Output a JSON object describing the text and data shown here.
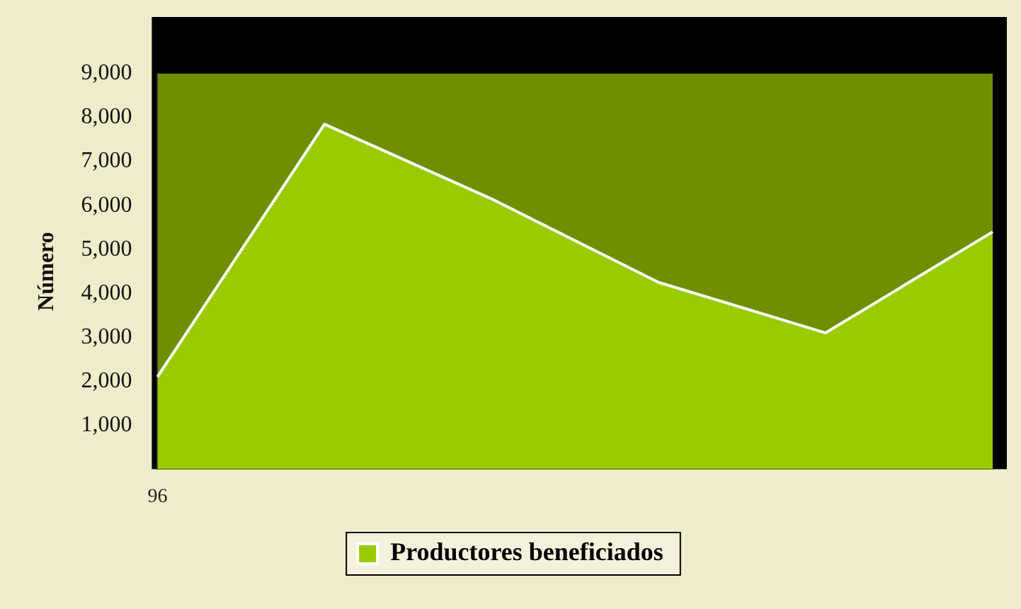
{
  "chart_data": {
    "type": "area",
    "ylabel": "Número",
    "categories": [
      "96",
      null,
      null,
      null,
      null,
      null
    ],
    "series": [
      {
        "name": "Productores beneficiados",
        "color": "#99cc00",
        "values": [
          2100,
          7850,
          6150,
          4250,
          3100,
          5400
        ]
      }
    ],
    "ylim": [
      0,
      9000
    ],
    "yticks": [
      {
        "value": 1000,
        "label": "1,000"
      },
      {
        "value": 2000,
        "label": "2,000"
      },
      {
        "value": 3000,
        "label": "3,000"
      },
      {
        "value": 4000,
        "label": "4,000"
      },
      {
        "value": 5000,
        "label": "5,000"
      },
      {
        "value": 6000,
        "label": "6,000"
      },
      {
        "value": 7000,
        "label": "7,000"
      },
      {
        "value": 8000,
        "label": "8,000"
      },
      {
        "value": 9000,
        "label": "9,000"
      }
    ],
    "grid": false,
    "legend": "bottom"
  }
}
